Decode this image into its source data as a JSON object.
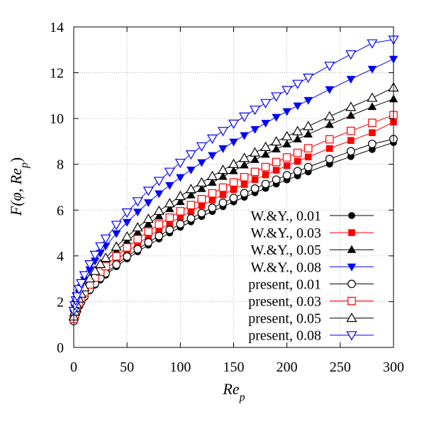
{
  "chart_data": {
    "type": "line",
    "ylabel_main": "F(φ, Re",
    "ylabel_sub": "p",
    "ylabel_close": ")",
    "xlabel_main": "Re",
    "xlabel_sub": "p",
    "xlim": [
      0,
      300
    ],
    "ylim": [
      0,
      14
    ],
    "xticks": [
      0,
      50,
      100,
      150,
      200,
      250,
      300
    ],
    "yticks": [
      0,
      2,
      4,
      6,
      8,
      10,
      12,
      14
    ],
    "grid": true,
    "legend_position": "bottom-right",
    "series": [
      {
        "name": "W.&Y., 0.01",
        "marker": "circle",
        "filled": true,
        "color": "#000000",
        "x": [
          0,
          1,
          2,
          3,
          5,
          7,
          10,
          15,
          20,
          25,
          30,
          40,
          50,
          60,
          70,
          80,
          90,
          100,
          110,
          120,
          130,
          140,
          150,
          160,
          170,
          180,
          190,
          200,
          210,
          220,
          240,
          260,
          280,
          300
        ],
        "y": [
          1.12,
          1.3,
          1.45,
          1.57,
          1.78,
          1.95,
          2.17,
          2.47,
          2.72,
          2.95,
          3.16,
          3.53,
          3.87,
          4.18,
          4.47,
          4.74,
          5.0,
          5.25,
          5.49,
          5.72,
          5.94,
          6.15,
          6.36,
          6.56,
          6.76,
          6.95,
          7.14,
          7.32,
          7.5,
          7.67,
          8.01,
          8.34,
          8.65,
          8.95
        ]
      },
      {
        "name": "W.&Y., 0.03",
        "marker": "square",
        "filled": true,
        "color": "#ff0000",
        "x": [
          0,
          1,
          2,
          3,
          5,
          7,
          10,
          15,
          20,
          25,
          30,
          40,
          50,
          60,
          70,
          80,
          90,
          100,
          110,
          120,
          130,
          140,
          150,
          160,
          170,
          180,
          190,
          200,
          210,
          220,
          240,
          260,
          280,
          300
        ],
        "y": [
          1.2,
          1.39,
          1.54,
          1.67,
          1.89,
          2.07,
          2.31,
          2.64,
          2.92,
          3.17,
          3.4,
          3.81,
          4.18,
          4.52,
          4.84,
          5.14,
          5.42,
          5.69,
          5.95,
          6.2,
          6.44,
          6.67,
          6.9,
          7.12,
          7.33,
          7.54,
          7.74,
          7.94,
          8.13,
          8.32,
          8.69,
          9.04,
          9.38,
          9.85
        ]
      },
      {
        "name": "W.&Y., 0.05",
        "marker": "triangle-up",
        "filled": true,
        "color": "#000000",
        "x": [
          0,
          1,
          2,
          3,
          5,
          7,
          10,
          15,
          20,
          25,
          30,
          40,
          50,
          60,
          70,
          80,
          90,
          100,
          110,
          120,
          130,
          140,
          150,
          160,
          170,
          180,
          190,
          200,
          210,
          220,
          240,
          260,
          280,
          300
        ],
        "y": [
          1.3,
          1.5,
          1.66,
          1.8,
          2.04,
          2.24,
          2.51,
          2.88,
          3.2,
          3.49,
          3.75,
          4.22,
          4.64,
          5.03,
          5.39,
          5.73,
          6.05,
          6.36,
          6.65,
          6.93,
          7.2,
          7.46,
          7.71,
          7.96,
          8.2,
          8.43,
          8.66,
          8.88,
          9.1,
          9.31,
          9.73,
          10.13,
          10.51,
          10.85
        ]
      },
      {
        "name": "W.&Y., 0.08",
        "marker": "triangle-down",
        "filled": true,
        "color": "#0000ff",
        "x": [
          0,
          1,
          2,
          3,
          5,
          7,
          10,
          15,
          20,
          25,
          30,
          40,
          50,
          60,
          70,
          80,
          90,
          100,
          110,
          120,
          130,
          140,
          150,
          160,
          170,
          180,
          190,
          200,
          210,
          220,
          240,
          260,
          280,
          300
        ],
        "y": [
          1.5,
          1.74,
          1.93,
          2.1,
          2.38,
          2.62,
          2.95,
          3.4,
          3.78,
          4.12,
          4.43,
          4.98,
          5.47,
          5.92,
          6.33,
          6.72,
          7.08,
          7.43,
          7.76,
          8.08,
          8.39,
          8.69,
          8.98,
          9.26,
          9.53,
          9.8,
          10.06,
          10.31,
          10.56,
          10.8,
          11.27,
          11.72,
          12.16,
          12.6
        ]
      },
      {
        "name": "present, 0.01",
        "marker": "circle",
        "filled": false,
        "color": "#000000",
        "x": [
          0,
          1,
          2,
          3,
          5,
          7,
          10,
          15,
          20,
          25,
          30,
          40,
          50,
          60,
          70,
          80,
          90,
          100,
          110,
          120,
          130,
          140,
          150,
          160,
          170,
          180,
          190,
          200,
          210,
          220,
          240,
          260,
          280,
          300
        ],
        "y": [
          1.15,
          1.33,
          1.48,
          1.6,
          1.82,
          1.99,
          2.22,
          2.53,
          2.79,
          3.03,
          3.24,
          3.62,
          3.97,
          4.29,
          4.59,
          4.87,
          5.14,
          5.39,
          5.64,
          5.87,
          6.1,
          6.32,
          6.53,
          6.74,
          6.94,
          7.14,
          7.33,
          7.52,
          7.7,
          7.88,
          8.23,
          8.57,
          8.89,
          9.1
        ]
      },
      {
        "name": "present, 0.03",
        "marker": "square",
        "filled": false,
        "color": "#ff0000",
        "x": [
          0,
          1,
          2,
          3,
          5,
          7,
          10,
          15,
          20,
          25,
          30,
          40,
          50,
          60,
          70,
          80,
          90,
          100,
          110,
          120,
          130,
          140,
          150,
          160,
          170,
          180,
          190,
          200,
          210,
          220,
          240,
          260,
          280,
          300
        ],
        "y": [
          1.25,
          1.44,
          1.6,
          1.74,
          1.97,
          2.16,
          2.41,
          2.75,
          3.05,
          3.31,
          3.55,
          3.98,
          4.37,
          4.73,
          5.06,
          5.37,
          5.67,
          5.95,
          6.22,
          6.48,
          6.73,
          6.98,
          7.21,
          7.44,
          7.67,
          7.88,
          8.1,
          8.3,
          8.5,
          8.7,
          9.09,
          9.46,
          9.81,
          10.15
        ]
      },
      {
        "name": "present, 0.05",
        "marker": "triangle-up",
        "filled": false,
        "color": "#000000",
        "x": [
          0,
          1,
          2,
          3,
          5,
          7,
          10,
          15,
          20,
          25,
          30,
          40,
          50,
          60,
          70,
          80,
          90,
          100,
          110,
          120,
          130,
          140,
          150,
          160,
          170,
          180,
          190,
          200,
          210,
          220,
          240,
          260,
          280,
          300
        ],
        "y": [
          1.35,
          1.56,
          1.73,
          1.88,
          2.13,
          2.34,
          2.62,
          3.01,
          3.34,
          3.64,
          3.91,
          4.4,
          4.84,
          5.24,
          5.61,
          5.96,
          6.29,
          6.61,
          6.91,
          7.2,
          7.48,
          7.75,
          8.01,
          8.27,
          8.51,
          8.75,
          8.99,
          9.22,
          9.44,
          9.66,
          10.09,
          10.5,
          10.9,
          11.35
        ]
      },
      {
        "name": "present, 0.08",
        "marker": "triangle-down",
        "filled": false,
        "color": "#0000ff",
        "x": [
          0,
          1,
          2,
          3,
          5,
          7,
          10,
          15,
          20,
          25,
          30,
          40,
          50,
          60,
          70,
          80,
          90,
          100,
          110,
          120,
          130,
          140,
          150,
          160,
          170,
          180,
          190,
          200,
          210,
          220,
          240,
          260,
          280,
          300
        ],
        "y": [
          1.6,
          1.85,
          2.06,
          2.24,
          2.55,
          2.81,
          3.16,
          3.64,
          4.05,
          4.42,
          4.76,
          5.36,
          5.9,
          6.39,
          6.85,
          7.28,
          7.68,
          8.07,
          8.44,
          8.79,
          9.13,
          9.46,
          9.78,
          10.09,
          10.39,
          10.68,
          10.97,
          11.25,
          11.52,
          11.79,
          12.31,
          12.81,
          13.29,
          13.45
        ]
      }
    ]
  }
}
